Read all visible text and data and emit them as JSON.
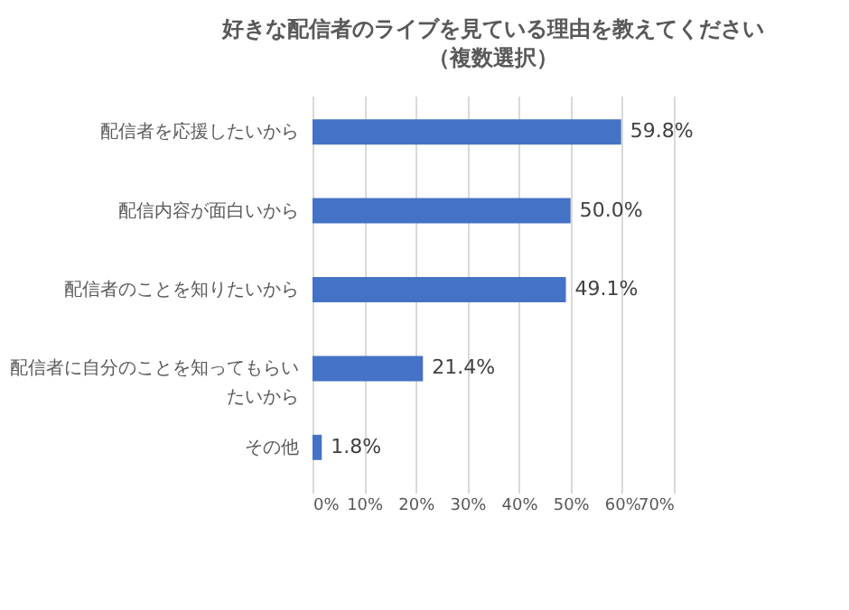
{
  "chart_data": {
    "type": "bar",
    "orientation": "horizontal",
    "title": "好きな配信者のライブを見ている理由を教えてください",
    "subtitle": "（複数選択）",
    "categories": [
      "配信者を応援したいから",
      "配信内容が面白いから",
      "配信者のことを知りたいから",
      "配信者に自分のことを知ってもらいたいから",
      "その他"
    ],
    "values": [
      59.8,
      50.0,
      49.1,
      21.4,
      1.8
    ],
    "value_labels": [
      "59.8%",
      "50.0%",
      "49.1%",
      "21.4%",
      "1.8%"
    ],
    "color": "#4472c4",
    "xlim": [
      0,
      70
    ],
    "xticks": [
      {
        "value": 0,
        "label": "0%"
      },
      {
        "value": 10,
        "label": "10%"
      },
      {
        "value": 20,
        "label": "20%"
      },
      {
        "value": 30,
        "label": "30%"
      },
      {
        "value": 40,
        "label": "40%"
      },
      {
        "value": 50,
        "label": "50%"
      },
      {
        "value": 60,
        "label": "60%"
      },
      {
        "value": 70,
        "label": "70%"
      }
    ],
    "grid": "x"
  }
}
